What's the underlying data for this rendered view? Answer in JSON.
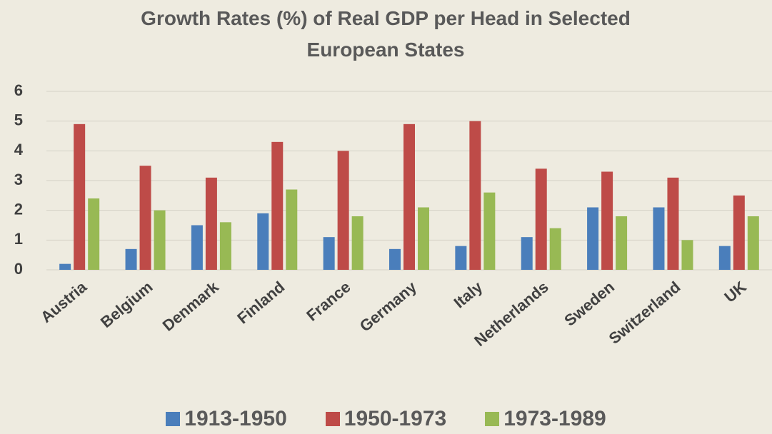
{
  "chart_data": {
    "type": "bar",
    "title": "Growth Rates (%) of Real GDP per Head in Selected European States",
    "categories": [
      "Austria",
      "Belgium",
      "Denmark",
      "Finland",
      "France",
      "Germany",
      "Italy",
      "Netherlands",
      "Sweden",
      "Switzerland",
      "UK"
    ],
    "series": [
      {
        "name": "1913-1950",
        "color": "#4a7ebb",
        "values": [
          0.2,
          0.7,
          1.5,
          1.9,
          1.1,
          0.7,
          0.8,
          1.1,
          2.1,
          2.1,
          0.8
        ]
      },
      {
        "name": "1950-1973",
        "color": "#be4b48",
        "values": [
          4.9,
          3.5,
          3.1,
          4.3,
          4.0,
          4.9,
          5.0,
          3.4,
          3.3,
          3.1,
          2.5
        ]
      },
      {
        "name": "1973-1989",
        "color": "#98b954",
        "values": [
          2.4,
          2.0,
          1.6,
          2.7,
          1.8,
          2.1,
          2.6,
          1.4,
          1.8,
          1.0,
          1.8
        ]
      }
    ],
    "ylim": [
      0,
      6
    ],
    "yticks": [
      0,
      1,
      2,
      3,
      4,
      5,
      6
    ],
    "grid": true,
    "legend": "bottom"
  }
}
